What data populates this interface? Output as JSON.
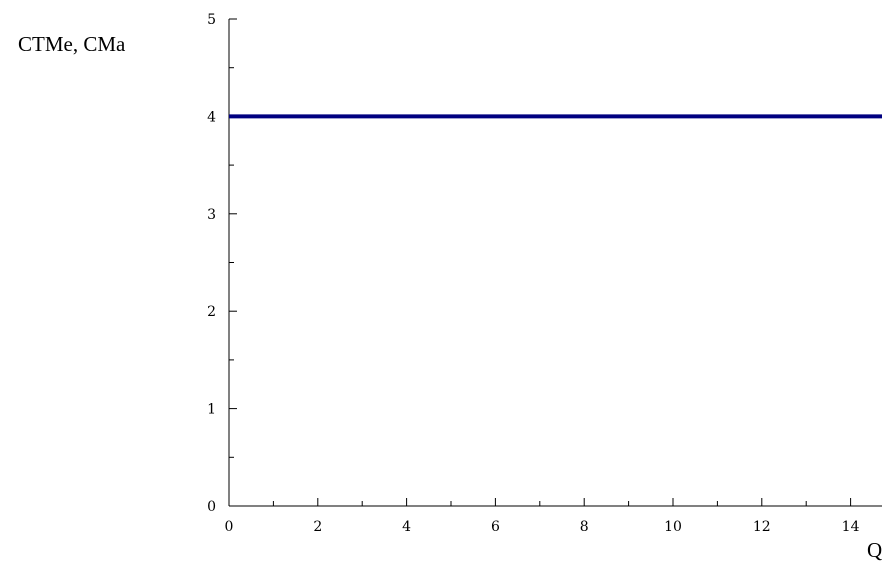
{
  "chart_data": {
    "type": "line",
    "title": "",
    "ylabel": "CTMe, CMa",
    "xlabel": "Q",
    "xlim": [
      0,
      15
    ],
    "ylim": [
      0,
      5
    ],
    "x_ticks": [
      0,
      2,
      4,
      6,
      8,
      10,
      12,
      14
    ],
    "y_ticks": [
      0,
      1,
      2,
      3,
      4,
      5
    ],
    "x_tick_labels": [
      "0",
      "2",
      "4",
      "6",
      "8",
      "10",
      "12",
      "14"
    ],
    "y_tick_labels": [
      "0",
      "1",
      "2",
      "3",
      "4",
      "5"
    ],
    "grid": false,
    "series": [
      {
        "x": [
          0,
          15
        ],
        "y": [
          4,
          4
        ],
        "color": "#000080"
      }
    ]
  }
}
